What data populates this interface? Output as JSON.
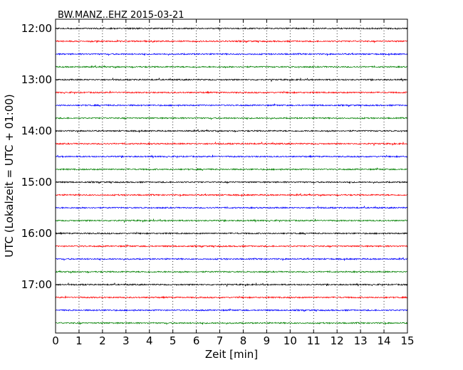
{
  "chart_data": {
    "type": "line",
    "title": "BW.MANZ..EHZ 2015-03-21",
    "xlabel": "Zeit  [min]",
    "ylabel": "UTC (Lokalzeit = UTC + 01:00)",
    "xlim": [
      0,
      15
    ],
    "x_ticks": [
      "0",
      "1",
      "2",
      "3",
      "4",
      "5",
      "6",
      "7",
      "8",
      "9",
      "10",
      "11",
      "12",
      "13",
      "14",
      "15"
    ],
    "y_ticks": [
      "12:00",
      "13:00",
      "14:00",
      "15:00",
      "16:00",
      "17:00"
    ],
    "traces_per_hour": 4,
    "trace_minutes": 15,
    "start_time": "12:00",
    "end_time": "17:45",
    "trace_colors": [
      "#000000",
      "#ff0000",
      "#0000ff",
      "#008000"
    ],
    "grid": "vertical-dotted",
    "legend": "none"
  }
}
